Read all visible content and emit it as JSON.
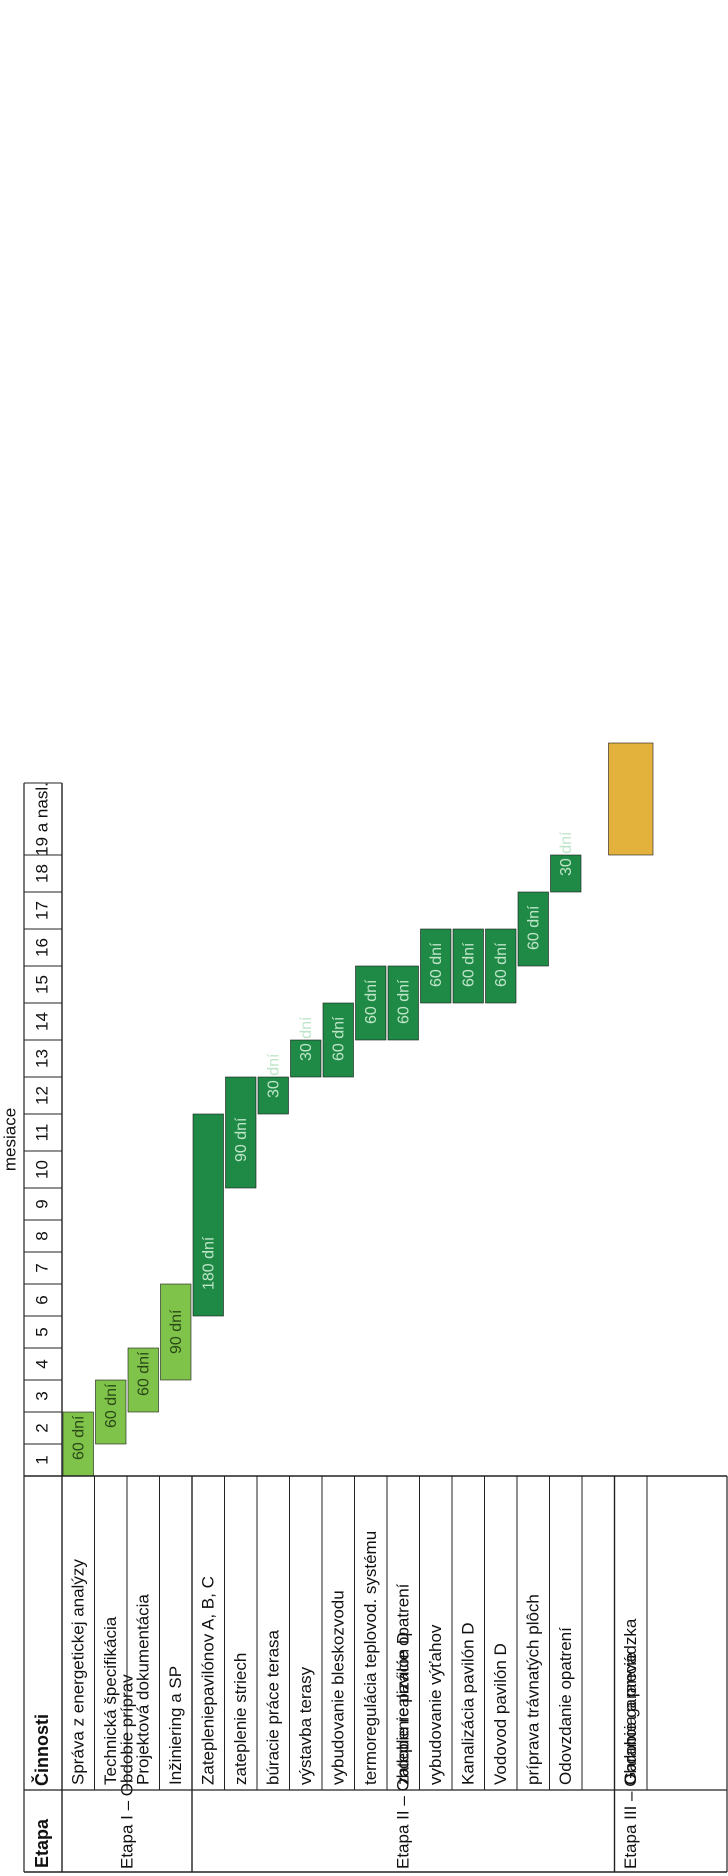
{
  "header": {
    "mesiace": "mesiace",
    "etapa": "Etapa",
    "cinnosti": "Činnosti"
  },
  "months": [
    "1",
    "2",
    "3",
    "4",
    "5",
    "6",
    "7",
    "8",
    "9",
    "10",
    "11",
    "12",
    "13",
    "14",
    "15",
    "16",
    "17",
    "18",
    "19 a nasl."
  ],
  "stages": [
    {
      "label": "Etapa I – Obdobie príprav",
      "start_row": 0,
      "row_count": 4
    },
    {
      "label": "Etapa II – Obdobie realizácie opatrení",
      "start_row": 4,
      "row_count": 13
    },
    {
      "label": "Etapa III – Obdobie garancie",
      "start_row": 17,
      "row_count": 1
    }
  ],
  "activities": [
    {
      "name": "Správa z energetickej analýzy",
      "start_month": 1,
      "duration_months": 2,
      "duration_label": "60 dní",
      "color": "#7fc34a"
    },
    {
      "name": "Technická špecifikácia",
      "start_month": 2,
      "duration_months": 2,
      "duration_label": "60 dní",
      "color": "#7fc34a"
    },
    {
      "name": "Projektová dokumentácia",
      "start_month": 3,
      "duration_months": 2,
      "duration_label": "60 dní",
      "color": "#7fc34a"
    },
    {
      "name": "Inžiniering a SP",
      "start_month": 4,
      "duration_months": 3,
      "duration_label": "90 dní",
      "color": "#7fc34a"
    },
    {
      "name": "Zatepleniepavilónov A, B, C",
      "start_month": 6,
      "duration_months": 6,
      "duration_label": "180 dní",
      "color": "#1e8a45"
    },
    {
      "name": "zateplenie striech",
      "start_month": 10,
      "duration_months": 3,
      "duration_label": "90 dní",
      "color": "#1e8a45"
    },
    {
      "name": "búracie práce terasa",
      "start_month": 12,
      "duration_months": 1,
      "duration_label": "30 dní",
      "color": "#1e8a45"
    },
    {
      "name": "výstavba terasy",
      "start_month": 13,
      "duration_months": 1,
      "duration_label": "30 dní",
      "color": "#1e8a45"
    },
    {
      "name": "vybudovanie bleskozvodu",
      "start_month": 13,
      "duration_months": 2,
      "duration_label": "60 dní",
      "color": "#1e8a45"
    },
    {
      "name": "termoregulácia teplovod. systému",
      "start_month": 14,
      "duration_months": 2,
      "duration_label": "60 dní",
      "color": "#1e8a45"
    },
    {
      "name": "zateplenie pavilón D",
      "start_month": 14,
      "duration_months": 2,
      "duration_label": "60 dní",
      "color": "#1e8a45"
    },
    {
      "name": "vybudovanie výťahov",
      "start_month": 15,
      "duration_months": 2,
      "duration_label": "60 dní",
      "color": "#1e8a45"
    },
    {
      "name": "Kanalizácia pavilón D",
      "start_month": 15,
      "duration_months": 2,
      "duration_label": "60 dní",
      "color": "#1e8a45"
    },
    {
      "name": "Vodovod pavilón D",
      "start_month": 15,
      "duration_months": 2,
      "duration_label": "60 dní",
      "color": "#1e8a45"
    },
    {
      "name": "príprava trávnatých plôch",
      "start_month": 16,
      "duration_months": 2,
      "duration_label": "60 dní",
      "color": "#1e8a45"
    },
    {
      "name": "Odovzdanie opatrení",
      "start_month": 18,
      "duration_months": 1,
      "duration_label": "30 dní",
      "color": "#1e8a45"
    },
    {
      "name": "",
      "start_month": null,
      "duration_months": null,
      "duration_label": "",
      "color": ""
    },
    {
      "name": "Garancia a prevádzka",
      "start_month": 19,
      "duration_months": 1,
      "duration_label": "",
      "color": "#e3b23c"
    }
  ],
  "colors": {
    "preparation_green": "#7fc34a",
    "realization_green": "#1e8a45",
    "guarantee_gold": "#e3b23c",
    "grid_line": "#222222"
  }
}
